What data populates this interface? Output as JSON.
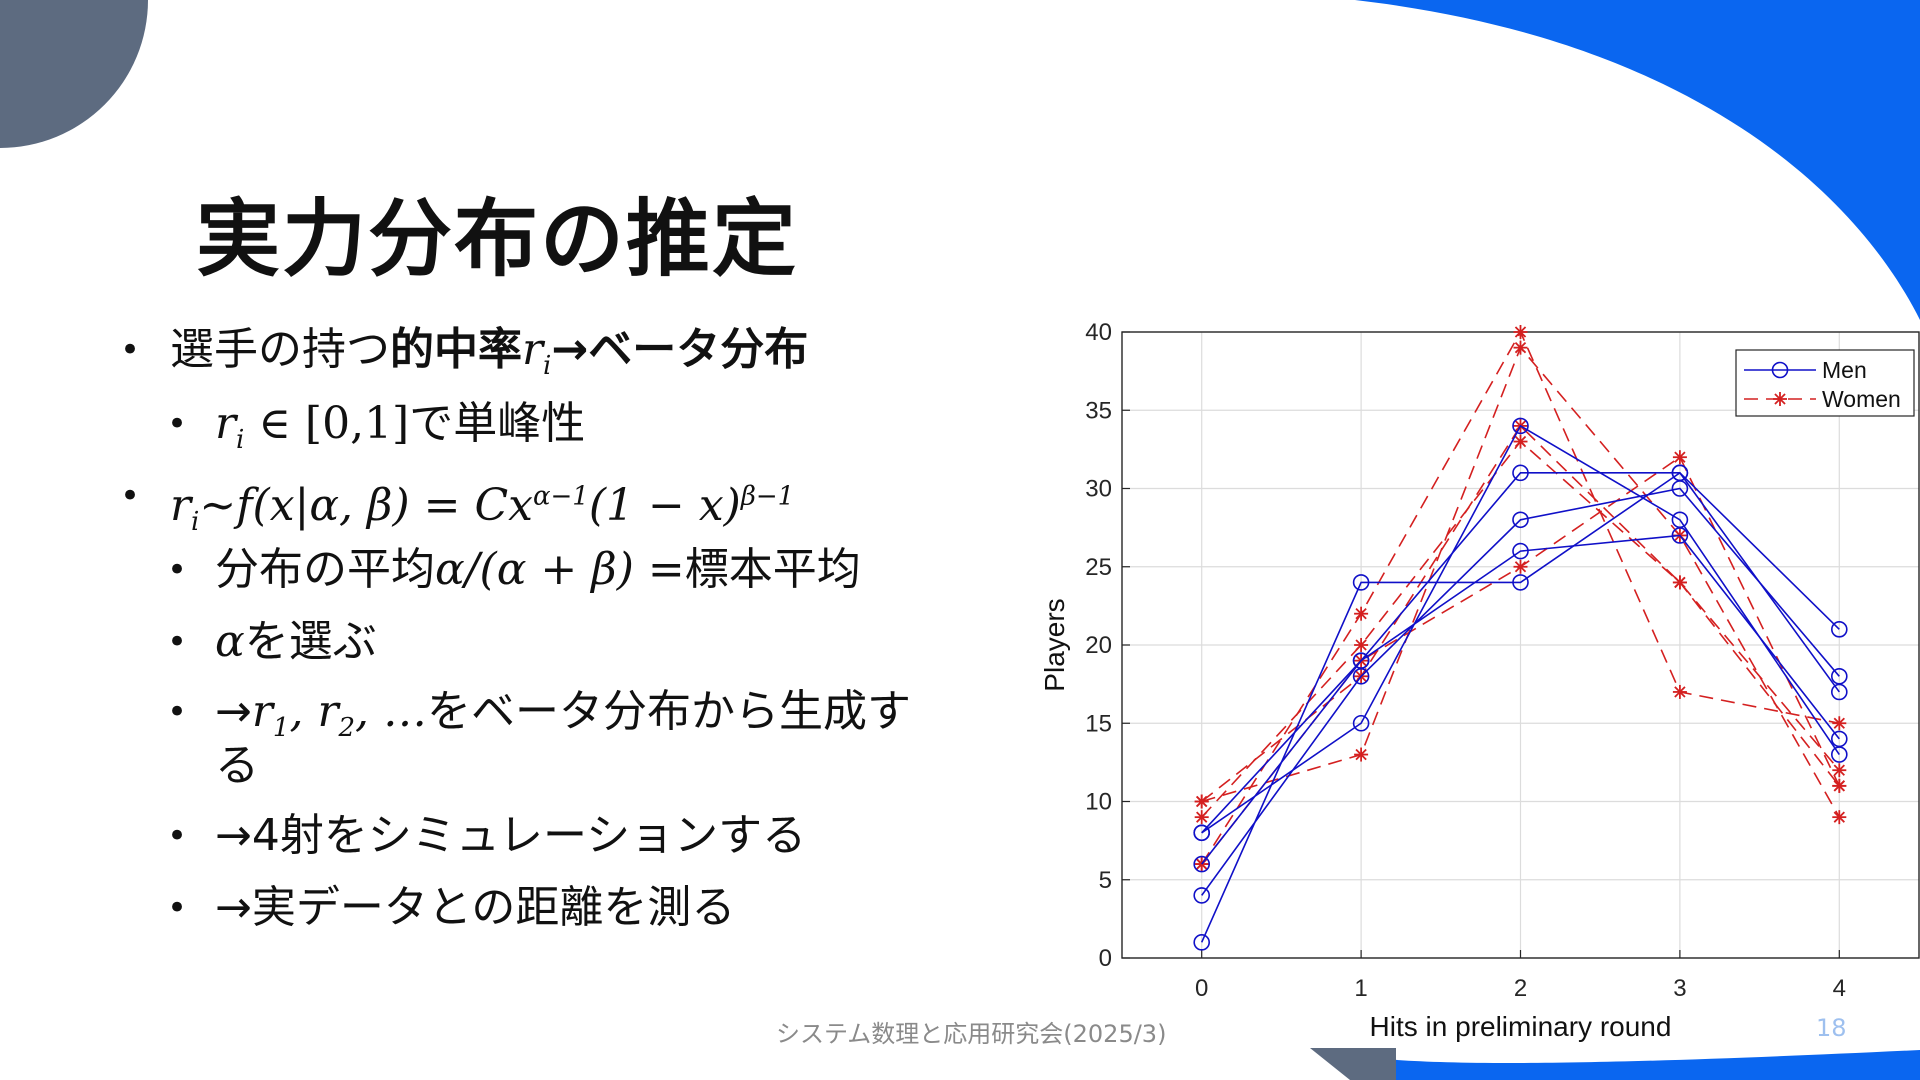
{
  "slide": {
    "title": "実力分布の推定",
    "footer": "システム数理と応用研究会(2025/3)",
    "page_number": "18",
    "accent_color": "#0a66f0",
    "corner_color": "#5d6b80"
  },
  "bullets": {
    "b1_text": "選手の持つ",
    "b1_bold": "的中率",
    "b1_var": "r",
    "b1_sub": "i",
    "b1_arrow": "→",
    "b1_bold2": "ベータ分布",
    "b2_var": "r",
    "b2_sub": "i",
    "b2_math": " ∈ [0,1]",
    "b2_text": "で単峰性",
    "b3_var": "r",
    "b3_sub": "i",
    "b3_math": "~f(x|α, β) = Cx",
    "b3_sup1": "α−1",
    "b3_math2": "(1 − x)",
    "b3_sup2": "β−1",
    "b4_text": "分布の平均",
    "b4_math": "α/(α + β)",
    "b4_text2": " =標本平均",
    "b5_math": "α",
    "b5_text": "を選ぶ",
    "b6_arrow": "→",
    "b6_math": "r",
    "b6_sub1": "1",
    "b6_math2": ", r",
    "b6_sub2": "2",
    "b6_math3": ", …",
    "b6_text": "をベータ分布から生成す",
    "b6_text2": "る",
    "b7_text": "→4射をシミュレーションする",
    "b8_text": "→実データとの距離を測る"
  },
  "chart_data": {
    "type": "line",
    "xlabel": "Hits in preliminary round",
    "ylabel": "Players",
    "x": [
      0,
      1,
      2,
      3,
      4
    ],
    "xlim": [
      -0.5,
      4.5
    ],
    "ylim": [
      0,
      40
    ],
    "xticks": [
      "0",
      "1",
      "2",
      "3",
      "4"
    ],
    "yticks": [
      "0",
      "5",
      "10",
      "15",
      "20",
      "25",
      "30",
      "35",
      "40"
    ],
    "grid": true,
    "legend_position": "top-right",
    "legend": [
      "Men",
      "Women"
    ],
    "series": [
      {
        "name": "Men",
        "color": "#1010c8",
        "marker": "circle",
        "dash": "solid",
        "lines": [
          [
            1,
            24,
            24,
            31,
            21
          ],
          [
            8,
            15,
            34,
            28,
            13
          ],
          [
            6,
            19,
            31,
            31,
            17
          ],
          [
            4,
            18,
            28,
            30,
            18
          ],
          [
            8,
            19,
            26,
            27,
            14
          ]
        ]
      },
      {
        "name": "Women",
        "color": "#d42020",
        "marker": "asterisk",
        "dash": "dashed",
        "lines": [
          [
            6,
            22,
            40,
            17,
            15
          ],
          [
            10,
            13,
            39,
            27,
            9
          ],
          [
            9,
            20,
            33,
            24,
            11
          ],
          [
            10,
            18,
            34,
            24,
            12
          ],
          [
            6,
            19,
            25,
            32,
            11
          ]
        ]
      }
    ]
  }
}
